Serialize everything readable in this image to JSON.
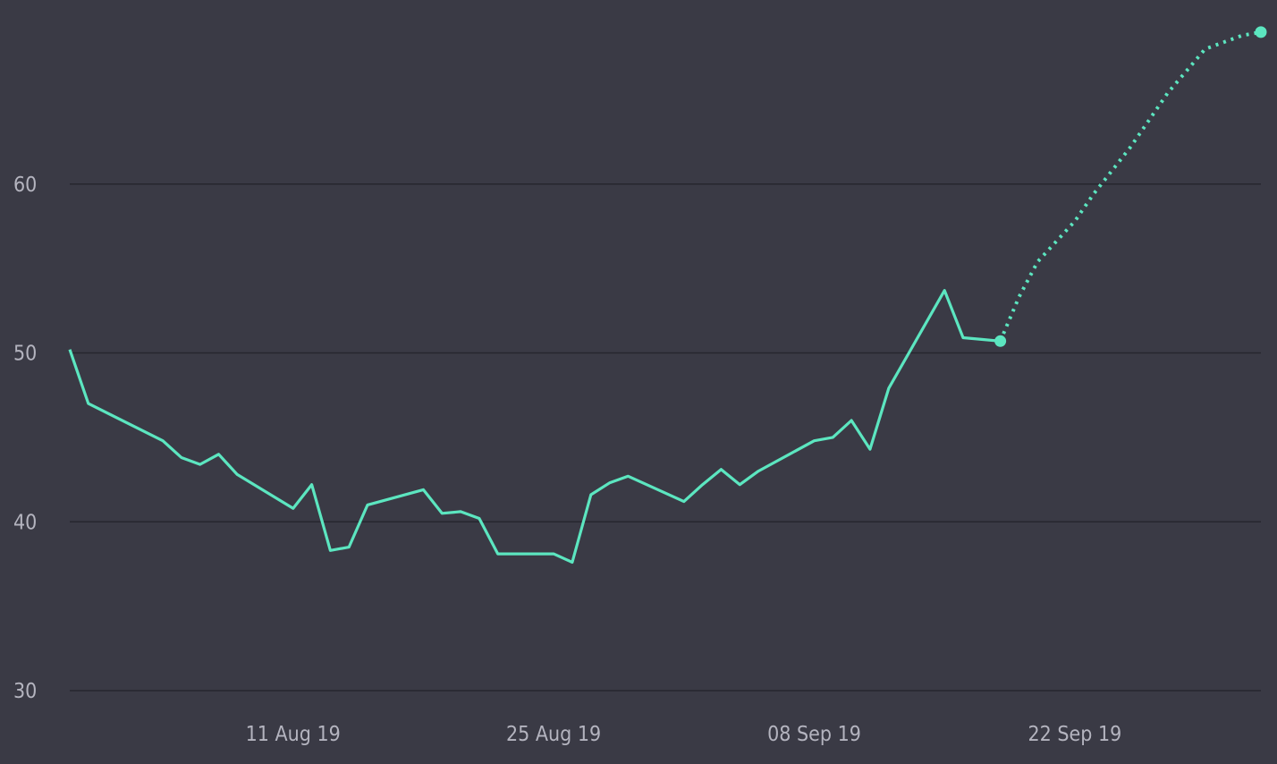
{
  "chart_data": {
    "type": "line",
    "title": "",
    "xlabel": "",
    "ylabel": "",
    "x_tick_labels": [
      "11 Aug 19",
      "25 Aug 19",
      "08 Sep 19",
      "22 Sep 19"
    ],
    "y_ticks": [
      30,
      40,
      50,
      60
    ],
    "ylim": [
      30,
      70
    ],
    "xlim": [
      "2019-07-30",
      "2019-10-02"
    ],
    "grid": true,
    "colors": {
      "background": "#3a3a45",
      "line": "#5ce6c0",
      "grid": "#26262e",
      "tick_text": "#b4b4bf"
    },
    "series": [
      {
        "style": "solid",
        "x": [
          "2019-07-30",
          "2019-07-31",
          "2019-08-04",
          "2019-08-05",
          "2019-08-06",
          "2019-08-07",
          "2019-08-08",
          "2019-08-11",
          "2019-08-12",
          "2019-08-13",
          "2019-08-14",
          "2019-08-15",
          "2019-08-18",
          "2019-08-19",
          "2019-08-20",
          "2019-08-21",
          "2019-08-22",
          "2019-08-25",
          "2019-08-26",
          "2019-08-27",
          "2019-08-28",
          "2019-08-29",
          "2019-09-01",
          "2019-09-02",
          "2019-09-03",
          "2019-09-04",
          "2019-09-05",
          "2019-09-08",
          "2019-09-09",
          "2019-09-10",
          "2019-09-11",
          "2019-09-12",
          "2019-09-15",
          "2019-09-16",
          "2019-09-17",
          "2019-09-18"
        ],
        "y": [
          50.2,
          47.0,
          44.8,
          43.8,
          43.4,
          44.0,
          42.8,
          40.8,
          42.2,
          38.3,
          38.5,
          41.0,
          41.9,
          40.5,
          40.6,
          40.2,
          38.1,
          38.1,
          37.6,
          41.6,
          42.3,
          42.7,
          41.2,
          42.2,
          43.1,
          42.2,
          43.0,
          44.8,
          45.0,
          46.0,
          44.3,
          47.9,
          53.7,
          50.9,
          50.8,
          50.7
        ]
      },
      {
        "style": "dotted",
        "x": [
          "2019-09-18",
          "2019-09-19",
          "2019-09-20",
          "2019-09-22",
          "2019-09-23",
          "2019-09-24",
          "2019-09-25",
          "2019-09-26",
          "2019-09-27",
          "2019-09-28",
          "2019-09-29",
          "2019-10-01",
          "2019-10-02"
        ],
        "y": [
          50.7,
          53.3,
          55.4,
          57.8,
          59.4,
          60.8,
          62.2,
          63.8,
          65.4,
          66.7,
          68.0,
          68.8,
          69.0
        ]
      }
    ]
  }
}
